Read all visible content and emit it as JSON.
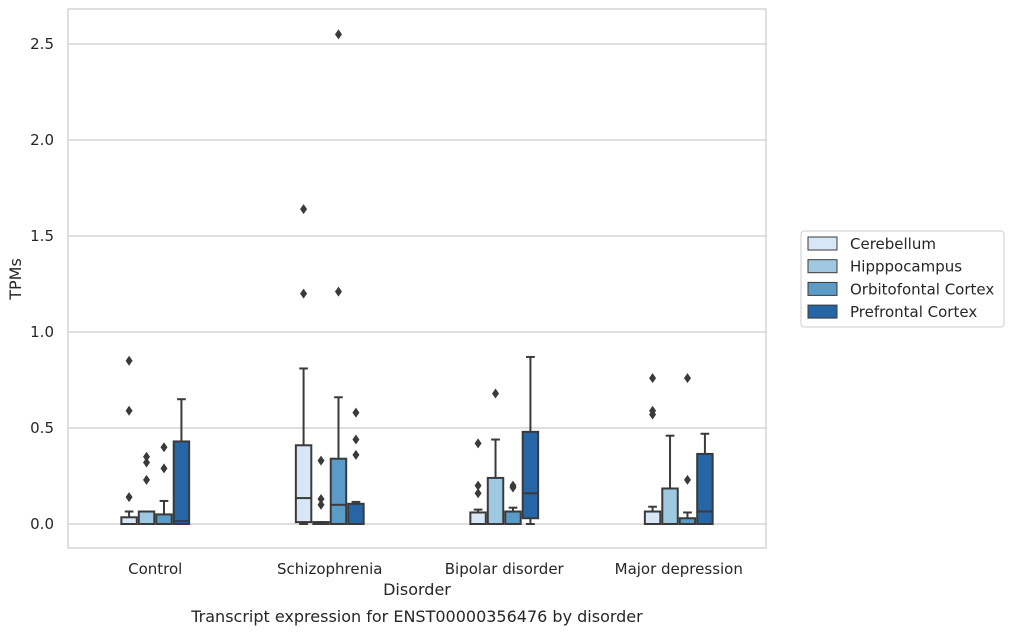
{
  "chart_data": {
    "type": "box",
    "title": "",
    "caption": "Transcript expression for ENST00000356476 by disorder",
    "xlabel": "Disorder",
    "ylabel": "TPMs",
    "ylim": [
      -0.12,
      2.68
    ],
    "yticks": [
      0.0,
      0.5,
      1.0,
      1.5,
      2.0,
      2.5
    ],
    "ytick_labels": [
      "0.0",
      "0.5",
      "1.0",
      "1.5",
      "2.0",
      "2.5"
    ],
    "grid": "horizontal",
    "legend_position": "right",
    "categories": [
      "Control",
      "Schizophrenia",
      "Bipolar disorder",
      "Major depression"
    ],
    "series": [
      {
        "name": "Cerebellum",
        "color": "#d8e7f5",
        "boxes": [
          {
            "q1": 0.0,
            "median": 0.0,
            "q3": 0.035,
            "whisker_low": 0.0,
            "whisker_high": 0.065,
            "outliers": [
              0.14,
              0.59,
              0.85
            ]
          },
          {
            "q1": 0.01,
            "median": 0.135,
            "q3": 0.41,
            "whisker_low": 0.0,
            "whisker_high": 0.81,
            "outliers": [
              1.2,
              1.64
            ]
          },
          {
            "q1": 0.0,
            "median": 0.0,
            "q3": 0.06,
            "whisker_low": 0.0,
            "whisker_high": 0.075,
            "outliers": [
              0.16,
              0.2,
              0.42
            ]
          },
          {
            "q1": 0.0,
            "median": 0.0,
            "q3": 0.065,
            "whisker_low": 0.0,
            "whisker_high": 0.09,
            "outliers": [
              0.57,
              0.59,
              0.76
            ]
          }
        ]
      },
      {
        "name": "Hipppocampus",
        "color": "#9fc9e0",
        "boxes": [
          {
            "q1": 0.0,
            "median": 0.0,
            "q3": 0.065,
            "whisker_low": 0.0,
            "whisker_high": 0.065,
            "outliers": [
              0.23,
              0.32,
              0.35
            ]
          },
          {
            "q1": 0.0,
            "median": 0.0,
            "q3": 0.01,
            "whisker_low": 0.0,
            "whisker_high": 0.01,
            "outliers": [
              0.1,
              0.13,
              0.33
            ]
          },
          {
            "q1": 0.0,
            "median": 0.0,
            "q3": 0.24,
            "whisker_low": 0.0,
            "whisker_high": 0.44,
            "outliers": [
              0.68
            ]
          },
          {
            "q1": 0.0,
            "median": 0.0,
            "q3": 0.185,
            "whisker_low": 0.0,
            "whisker_high": 0.46,
            "outliers": []
          }
        ]
      },
      {
        "name": "Orbitofontal Cortex",
        "color": "#5a9bc8",
        "boxes": [
          {
            "q1": 0.0,
            "median": 0.0,
            "q3": 0.05,
            "whisker_low": 0.0,
            "whisker_high": 0.12,
            "outliers": [
              0.29,
              0.4
            ]
          },
          {
            "q1": 0.0,
            "median": 0.1,
            "q3": 0.34,
            "whisker_low": 0.0,
            "whisker_high": 0.66,
            "outliers": [
              1.21,
              2.55
            ]
          },
          {
            "q1": 0.0,
            "median": 0.0,
            "q3": 0.065,
            "whisker_low": 0.0,
            "whisker_high": 0.085,
            "outliers": [
              0.19,
              0.2
            ]
          },
          {
            "q1": 0.0,
            "median": 0.0,
            "q3": 0.03,
            "whisker_low": 0.0,
            "whisker_high": 0.06,
            "outliers": [
              0.23,
              0.76
            ]
          }
        ]
      },
      {
        "name": "Prefrontal Cortex",
        "color": "#2666a6",
        "boxes": [
          {
            "q1": 0.0,
            "median": 0.015,
            "q3": 0.43,
            "whisker_low": 0.0,
            "whisker_high": 0.65,
            "outliers": []
          },
          {
            "q1": 0.0,
            "median": 0.0,
            "q3": 0.105,
            "whisker_low": 0.0,
            "whisker_high": 0.115,
            "outliers": [
              0.36,
              0.44,
              0.58
            ]
          },
          {
            "q1": 0.03,
            "median": 0.16,
            "q3": 0.48,
            "whisker_low": 0.0,
            "whisker_high": 0.87,
            "outliers": []
          },
          {
            "q1": 0.0,
            "median": 0.065,
            "q3": 0.365,
            "whisker_low": 0.0,
            "whisker_high": 0.47,
            "outliers": []
          }
        ]
      }
    ]
  }
}
